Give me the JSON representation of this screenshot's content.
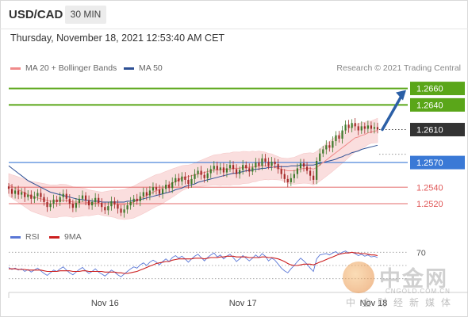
{
  "header": {
    "pair": "USD/CAD",
    "timeframe": "30 MIN",
    "timestamp": "Thursday, November 18, 2021 12:53:40 AM CET"
  },
  "legend": {
    "ma20_label": "MA 20 + Bollinger Bands",
    "ma50_label": "MA 50",
    "credit": "Research © 2021 Trading Central"
  },
  "rsi_legend": {
    "rsi_label": "RSI",
    "ma9_label": "9MA"
  },
  "colors": {
    "green_level": "#5aa619",
    "current_price": "#333333",
    "pivot_blue": "#3a79d6",
    "support_red": "#e05858",
    "ma20": "#f08a8a",
    "bollinger_fill": "#f9d4d4",
    "ma50": "#2d4f94",
    "candle_up": "#3f7a2c",
    "candle_down": "#a52a2a",
    "arrow": "#2b5fa6",
    "rsi": "#5a77d6",
    "rsi_ma": "#cc1f1f"
  },
  "watermark": {
    "cn": "中金网",
    "en": "CNGOLD.COM.CN",
    "sub": "中金财经新媒体"
  },
  "chart_data": {
    "type": "candlestick",
    "symbol": "USD/CAD",
    "timeframe": "30 MIN",
    "x_ticks": [
      "Nov 16",
      "Nov 17",
      "Nov 18"
    ],
    "ylim": [
      1.2495,
      1.2675
    ],
    "levels": [
      {
        "label": "1.2660",
        "value": 1.266,
        "kind": "resistance"
      },
      {
        "label": "1.2640",
        "value": 1.264,
        "kind": "resistance"
      },
      {
        "label": "1.2610",
        "value": 1.261,
        "kind": "current"
      },
      {
        "label": "1.2570",
        "value": 1.257,
        "kind": "pivot"
      },
      {
        "label": "1.2540",
        "value": 1.254,
        "kind": "support"
      },
      {
        "label": "1.2520",
        "value": 1.252,
        "kind": "support"
      }
    ],
    "close": [
      1.2538,
      1.2532,
      1.2536,
      1.2531,
      1.2534,
      1.2528,
      1.2531,
      1.2526,
      1.2529,
      1.2533,
      1.2528,
      1.2522,
      1.2516,
      1.252,
      1.2525,
      1.2522,
      1.2528,
      1.2532,
      1.2526,
      1.252,
      1.2515,
      1.2521,
      1.2526,
      1.253,
      1.2524,
      1.2518,
      1.2522,
      1.2527,
      1.2521,
      1.2516,
      1.2512,
      1.2517,
      1.2523,
      1.2519,
      1.2514,
      1.2509,
      1.2513,
      1.2518,
      1.2522,
      1.2526,
      1.2523,
      1.2529,
      1.2534,
      1.253,
      1.2536,
      1.254,
      1.2537,
      1.2532,
      1.2538,
      1.2543,
      1.2539,
      1.2546,
      1.2551,
      1.2547,
      1.2553,
      1.2549,
      1.2544,
      1.255,
      1.2556,
      1.256,
      1.2555,
      1.2551,
      1.2557,
      1.2562,
      1.2566,
      1.2561,
      1.2564,
      1.2558,
      1.2563,
      1.2567,
      1.2562,
      1.2556,
      1.2561,
      1.2567,
      1.2563,
      1.2559,
      1.2564,
      1.257,
      1.2566,
      1.2575,
      1.2571,
      1.2566,
      1.2571,
      1.2568,
      1.2562,
      1.2556,
      1.255,
      1.2546,
      1.2551,
      1.2556,
      1.2563,
      1.2569,
      1.2565,
      1.256,
      1.2554,
      1.2549,
      1.2572,
      1.2581,
      1.2586,
      1.2591,
      1.2588,
      1.2596,
      1.2603,
      1.2599,
      1.2609,
      1.2616,
      1.2612,
      1.2618,
      1.2614,
      1.2609,
      1.2614,
      1.2611,
      1.2615,
      1.2611,
      1.2613,
      1.261
    ],
    "ma20": [
      1.2543,
      1.2541,
      1.2539,
      1.2537,
      1.2535,
      1.2533,
      1.2531,
      1.2529,
      1.2528,
      1.2527,
      1.2526,
      1.2525,
      1.2524,
      1.2523,
      1.2523,
      1.2523,
      1.2524,
      1.2524,
      1.2524,
      1.2523,
      1.2522,
      1.2522,
      1.2522,
      1.2522,
      1.2522,
      1.2521,
      1.2521,
      1.2521,
      1.2521,
      1.252,
      1.252,
      1.252,
      1.252,
      1.252,
      1.2519,
      1.2519,
      1.2519,
      1.252,
      1.2521,
      1.2522,
      1.2524,
      1.2526,
      1.2528,
      1.253,
      1.2532,
      1.2534,
      1.2536,
      1.2537,
      1.2539,
      1.2541,
      1.2543,
      1.2545,
      1.2547,
      1.2549,
      1.2551,
      1.2552,
      1.2553,
      1.2554,
      1.2555,
      1.2556,
      1.2557,
      1.2558,
      1.2559,
      1.256,
      1.2561,
      1.2561,
      1.2561,
      1.2562,
      1.2562,
      1.2562,
      1.2563,
      1.2563,
      1.2563,
      1.2564,
      1.2564,
      1.2564,
      1.2565,
      1.2565,
      1.2566,
      1.2566,
      1.2566,
      1.2565,
      1.2565,
      1.2564,
      1.2563,
      1.2562,
      1.2561,
      1.256,
      1.256,
      1.256,
      1.2561,
      1.2562,
      1.2563,
      1.2563,
      1.2563,
      1.2562,
      1.2564,
      1.2567,
      1.257,
      1.2573,
      1.2576,
      1.2579,
      1.2582,
      1.2585,
      1.2588,
      1.2591,
      1.2594,
      1.2597,
      1.26,
      1.2601,
      1.2603,
      1.2604,
      1.2606,
      1.2607,
      1.2608,
      1.2609
    ],
    "ma50": [
      1.2566,
      1.2563,
      1.256,
      1.2557,
      1.2554,
      1.2551,
      1.2548,
      1.2546,
      1.2544,
      1.2542,
      1.254,
      1.2538,
      1.2536,
      1.2534,
      1.2533,
      1.2532,
      1.2531,
      1.253,
      1.2529,
      1.2528,
      1.2527,
      1.2526,
      1.2525,
      1.2525,
      1.2524,
      1.2524,
      1.2523,
      1.2523,
      1.2523,
      1.2522,
      1.2522,
      1.2522,
      1.2522,
      1.2522,
      1.2522,
      1.2522,
      1.2522,
      1.2523,
      1.2523,
      1.2524,
      1.2524,
      1.2525,
      1.2526,
      1.2527,
      1.2528,
      1.2529,
      1.253,
      1.2531,
      1.2532,
      1.2533,
      1.2534,
      1.2535,
      1.2537,
      1.2538,
      1.2539,
      1.2541,
      1.2542,
      1.2543,
      1.2544,
      1.2546,
      1.2547,
      1.2548,
      1.2549,
      1.255,
      1.2551,
      1.2552,
      1.2553,
      1.2554,
      1.2555,
      1.2556,
      1.2557,
      1.2557,
      1.2558,
      1.2559,
      1.256,
      1.256,
      1.2561,
      1.2562,
      1.2562,
      1.2563,
      1.2563,
      1.2564,
      1.2564,
      1.2565,
      1.2565,
      1.2565,
      1.2565,
      1.2565,
      1.2566,
      1.2566,
      1.2566,
      1.2567,
      1.2567,
      1.2567,
      1.2567,
      1.2567,
      1.2568,
      1.2569,
      1.257,
      1.2571,
      1.2572,
      1.2573,
      1.2574,
      1.2576,
      1.2577,
      1.2579,
      1.258,
      1.2582,
      1.2583,
      1.2584,
      1.2586,
      1.2587,
      1.2588,
      1.2589,
      1.259,
      1.2591
    ],
    "bollinger_width": 0.0018,
    "projection": {
      "from": 1.261,
      "to": 1.266
    },
    "rsi": {
      "levels": [
        70,
        50,
        30
      ],
      "level_labels": [
        "70"
      ],
      "ylim": [
        20,
        80
      ],
      "values": [
        47,
        44,
        46,
        43,
        45,
        41,
        44,
        40,
        43,
        46,
        42,
        38,
        35,
        39,
        43,
        41,
        45,
        48,
        43,
        39,
        36,
        40,
        44,
        47,
        42,
        38,
        41,
        45,
        40,
        37,
        34,
        38,
        43,
        40,
        36,
        33,
        37,
        41,
        45,
        48,
        46,
        51,
        54,
        50,
        55,
        58,
        55,
        51,
        56,
        60,
        56,
        62,
        65,
        61,
        64,
        60,
        55,
        60,
        64,
        67,
        62,
        57,
        62,
        66,
        69,
        63,
        66,
        60,
        64,
        67,
        62,
        56,
        60,
        65,
        61,
        57,
        61,
        66,
        62,
        68,
        64,
        57,
        61,
        58,
        52,
        46,
        42,
        39,
        45,
        50,
        56,
        61,
        57,
        52,
        46,
        41,
        60,
        66,
        67,
        68,
        66,
        69,
        71,
        67,
        70,
        72,
        69,
        70,
        68,
        65,
        67,
        64,
        66,
        63,
        64,
        62
      ],
      "ma": [
        45,
        45,
        45,
        44,
        44,
        44,
        43,
        43,
        43,
        43,
        43,
        42,
        41,
        41,
        41,
        41,
        42,
        42,
        42,
        42,
        41,
        41,
        41,
        42,
        42,
        41,
        41,
        41,
        41,
        41,
        40,
        40,
        40,
        40,
        39,
        39,
        38,
        38,
        39,
        40,
        41,
        43,
        45,
        47,
        49,
        51,
        53,
        54,
        55,
        56,
        56,
        58,
        59,
        60,
        60,
        60,
        60,
        60,
        61,
        61,
        61,
        60,
        61,
        62,
        62,
        62,
        63,
        63,
        64,
        64,
        64,
        63,
        63,
        63,
        63,
        62,
        62,
        62,
        62,
        63,
        63,
        62,
        62,
        61,
        60,
        58,
        56,
        53,
        51,
        50,
        50,
        51,
        52,
        52,
        52,
        51,
        53,
        55,
        57,
        59,
        61,
        63,
        65,
        67,
        68,
        69,
        69,
        70,
        69,
        69,
        68,
        68,
        67,
        66,
        66,
        65
      ]
    }
  }
}
